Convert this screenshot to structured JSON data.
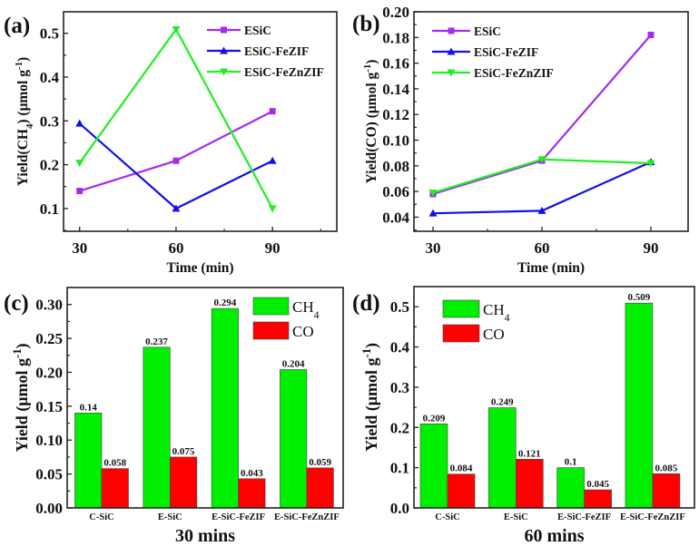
{
  "chart_data": [
    {
      "panel": "(a)",
      "type": "line",
      "xlabel": "Time (min)",
      "ylabel": "Yield(CH4) (μmol g-1)",
      "ylabel_parts": [
        {
          "t": "Yield(CH"
        },
        {
          "t": "4",
          "sub": true
        },
        {
          "t": ") (μmol g"
        },
        {
          "t": "-1",
          "sup": true
        },
        {
          "t": ")"
        }
      ],
      "x": [
        30,
        60,
        90
      ],
      "xlim": [
        25,
        110
      ],
      "ylim": [
        0.048,
        0.549
      ],
      "xticks": [
        30,
        60,
        90
      ],
      "xminor": [
        45,
        75,
        105
      ],
      "yticks": [
        "0.1",
        "0.2",
        "0.3",
        "0.4",
        "0.5"
      ],
      "legend_position": "top-right",
      "series": [
        {
          "name": "ESiC",
          "values": [
            0.14,
            0.209,
            0.322
          ],
          "color": "#a42cf0",
          "marker": "square"
        },
        {
          "name": "ESiC-FeZIF",
          "values": [
            0.294,
            0.1,
            0.209
          ],
          "color": "#1010f0",
          "marker": "triangle-up"
        },
        {
          "name": "ESiC-FeZnZIF",
          "values": [
            0.204,
            0.509,
            0.1
          ],
          "color": "#22ee22",
          "marker": "triangle-down"
        }
      ]
    },
    {
      "panel": "(b)",
      "type": "line",
      "xlabel": "Time (min)",
      "ylabel": "Yield(CO) (μmol g-1)",
      "ylabel_parts": [
        {
          "t": "Yield(CO) (μmol g"
        },
        {
          "t": "-1",
          "sup": true
        },
        {
          "t": ")"
        }
      ],
      "x": [
        30,
        60,
        90
      ],
      "xlim": [
        24.75,
        100.25
      ],
      "ylim": [
        0.029,
        0.2
      ],
      "xticks": [
        30,
        60,
        90
      ],
      "xminor": [
        45,
        75
      ],
      "yticks": [
        "0.04",
        "0.06",
        "0.08",
        "0.10",
        "0.12",
        "0.14",
        "0.16",
        "0.18",
        "0.20"
      ],
      "legend_position": "top-left",
      "series": [
        {
          "name": "ESiC",
          "values": [
            0.058,
            0.084,
            0.182
          ],
          "color": "#a42cf0",
          "marker": "square"
        },
        {
          "name": "ESiC-FeZIF",
          "values": [
            0.043,
            0.045,
            0.083
          ],
          "color": "#1010f0",
          "marker": "triangle-up"
        },
        {
          "name": "ESiC-FeZnZIF",
          "values": [
            0.059,
            0.085,
            0.082
          ],
          "color": "#22ee22",
          "marker": "triangle-down"
        }
      ]
    },
    {
      "panel": "(c)",
      "type": "bar",
      "xlabel": "30 mins",
      "ylabel": "Yield (μmol g-1)",
      "ylabel_parts": [
        {
          "t": "Yield (μmol g"
        },
        {
          "t": "-1",
          "sup": true
        },
        {
          "t": ")"
        }
      ],
      "categories": [
        "C-SiC",
        "E-SiC",
        "E-SiC-FeZIF",
        "E-SiC-FeZnZIF"
      ],
      "ylim": [
        0,
        0.325
      ],
      "yticks": [
        "0.00",
        "0.05",
        "0.10",
        "0.15",
        "0.20",
        "0.25",
        "0.30"
      ],
      "legend_position": "top-right",
      "series": [
        {
          "name": "CH4",
          "name_parts": [
            {
              "t": "CH"
            },
            {
              "t": "4",
              "sub": true
            }
          ],
          "values": [
            0.14,
            0.237,
            0.294,
            0.204
          ],
          "labels": [
            "0.14",
            "0.237",
            "0.294",
            "0.204"
          ],
          "color": "#00ee00"
        },
        {
          "name": "CO",
          "name_parts": [
            {
              "t": "CO"
            }
          ],
          "values": [
            0.058,
            0.075,
            0.043,
            0.059
          ],
          "labels": [
            "0.058",
            "0.075",
            "0.043",
            "0.059"
          ],
          "color": "#ff0000"
        }
      ]
    },
    {
      "panel": "(d)",
      "type": "bar",
      "xlabel": "60 mins",
      "ylabel": "Yield (μmol g-1)",
      "ylabel_parts": [
        {
          "t": "Yield (μmol g"
        },
        {
          "t": "-1",
          "sup": true
        },
        {
          "t": ")"
        }
      ],
      "categories": [
        "C-SiC",
        "E-SiC",
        "E-SiC-FeZIF",
        "E-SiC-FeZnZIF"
      ],
      "ylim": [
        0,
        0.55
      ],
      "yticks": [
        "0.0",
        "0.1",
        "0.2",
        "0.3",
        "0.4",
        "0.5"
      ],
      "legend_position": "top-left",
      "series": [
        {
          "name": "CH4",
          "name_parts": [
            {
              "t": "CH"
            },
            {
              "t": "4",
              "sub": true
            }
          ],
          "values": [
            0.209,
            0.249,
            0.1,
            0.509
          ],
          "labels": [
            "0.209",
            "0.249",
            "0.1",
            "0.509"
          ],
          "color": "#00ee00"
        },
        {
          "name": "CO",
          "name_parts": [
            {
              "t": "CO"
            }
          ],
          "values": [
            0.084,
            0.121,
            0.045,
            0.085
          ],
          "labels": [
            "0.084",
            "0.121",
            "0.045",
            "0.085"
          ],
          "color": "#ff0000"
        }
      ]
    }
  ]
}
